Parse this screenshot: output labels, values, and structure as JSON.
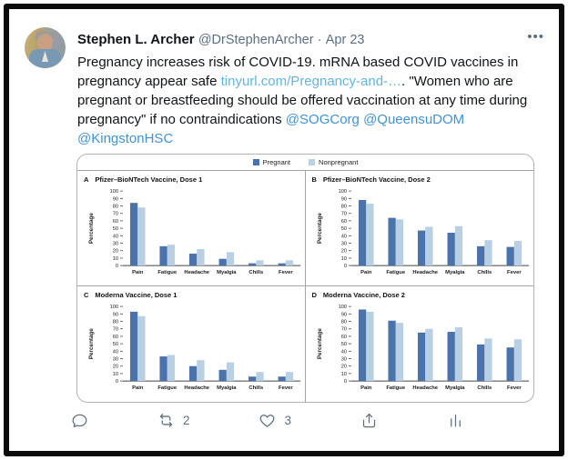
{
  "tweet": {
    "author": "Stephen L. Archer",
    "handle": "@DrStephenArcher",
    "separator": "·",
    "date": "Apr 23",
    "more_label": "•••",
    "segments": [
      {
        "type": "text",
        "text": "Pregnancy increases risk of COVID-19. mRNA based COVID vaccines in pregnancy appear safe "
      },
      {
        "type": "link",
        "text": "tinyurl.com/Pregnancy-and-…"
      },
      {
        "type": "text",
        "text": ". \"Women who are pregnant or breastfeeding should be offered vaccination at any time during pregnancy\" if no contraindications "
      },
      {
        "type": "mention",
        "text": "@SOGCorg"
      },
      {
        "type": "text",
        "text": " "
      },
      {
        "type": "mention",
        "text": "@QueensuDOM"
      },
      {
        "type": "text",
        "text": " "
      },
      {
        "type": "mention",
        "text": "@KingstonHSC"
      }
    ]
  },
  "legend": {
    "position": "top-center",
    "items": [
      {
        "label": "Pregnant",
        "color": "#4a72ab"
      },
      {
        "label": "Nonpregnant",
        "color": "#b9cfe3"
      }
    ]
  },
  "chart_data": [
    {
      "type": "bar",
      "panel": "A",
      "title": "Pfizer–BioNTech Vaccine, Dose 1",
      "xlabel": "",
      "ylabel": "Percentage",
      "ylim": [
        0,
        100
      ],
      "ytick_step": 10,
      "grid": false,
      "categories": [
        "Pain",
        "Fatigue",
        "Headache",
        "Myalgia",
        "Chills",
        "Fever"
      ],
      "series": [
        {
          "name": "Pregnant",
          "values": [
            84,
            26,
            16,
            9,
            3,
            3
          ]
        },
        {
          "name": "Nonpregnant",
          "values": [
            78,
            28,
            22,
            18,
            7,
            7
          ]
        }
      ]
    },
    {
      "type": "bar",
      "panel": "B",
      "title": "Pfizer–BioNTech Vaccine, Dose 2",
      "xlabel": "",
      "ylabel": "Percentage",
      "ylim": [
        0,
        100
      ],
      "ytick_step": 10,
      "grid": false,
      "categories": [
        "Pain",
        "Fatigue",
        "Headache",
        "Myalgia",
        "Chills",
        "Fever"
      ],
      "series": [
        {
          "name": "Pregnant",
          "values": [
            88,
            64,
            47,
            44,
            26,
            25
          ]
        },
        {
          "name": "Nonpregnant",
          "values": [
            83,
            62,
            52,
            53,
            34,
            33
          ]
        }
      ]
    },
    {
      "type": "bar",
      "panel": "C",
      "title": "Moderna Vaccine, Dose 1",
      "xlabel": "",
      "ylabel": "Percentage",
      "ylim": [
        0,
        100
      ],
      "ytick_step": 10,
      "grid": false,
      "categories": [
        "Pain",
        "Fatigue",
        "Headache",
        "Myalgia",
        "Chills",
        "Fever"
      ],
      "series": [
        {
          "name": "Pregnant",
          "values": [
            93,
            33,
            20,
            15,
            6,
            6
          ]
        },
        {
          "name": "Nonpregnant",
          "values": [
            87,
            35,
            28,
            25,
            12,
            12
          ]
        }
      ]
    },
    {
      "type": "bar",
      "panel": "D",
      "title": "Moderna Vaccine, Dose 2",
      "xlabel": "",
      "ylabel": "Percentage",
      "ylim": [
        0,
        100
      ],
      "ytick_step": 10,
      "grid": false,
      "categories": [
        "Pain",
        "Fatigue",
        "Headache",
        "Myalgia",
        "Chills",
        "Fever"
      ],
      "series": [
        {
          "name": "Pregnant",
          "values": [
            96,
            81,
            65,
            66,
            49,
            45
          ]
        },
        {
          "name": "Nonpregnant",
          "values": [
            93,
            78,
            70,
            72,
            57,
            56
          ]
        }
      ]
    }
  ],
  "actions": [
    {
      "name": "reply",
      "count": ""
    },
    {
      "name": "retweet",
      "count": "2"
    },
    {
      "name": "like",
      "count": "3"
    },
    {
      "name": "share",
      "count": ""
    },
    {
      "name": "analytics",
      "count": ""
    }
  ],
  "colors": {
    "pregnant_bar": "#4a72ab",
    "nonpregnant_bar": "#b9cfe3",
    "link": "#63b4e6",
    "mention": "#3f93d6",
    "text": "#0f1419",
    "muted": "#5b7083",
    "axis": "#444444",
    "card_border": "#b3b3b3",
    "frame": "#0b0b0b"
  }
}
